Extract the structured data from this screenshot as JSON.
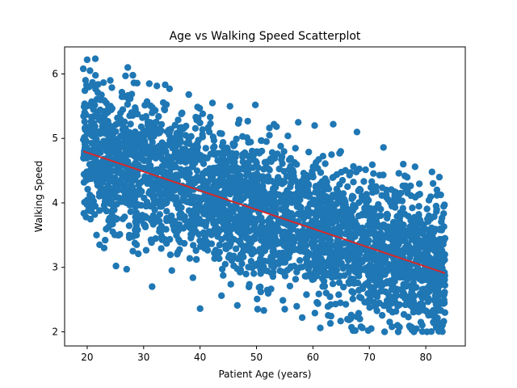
{
  "chart_data": {
    "type": "scatter",
    "title": "Age vs Walking Speed Scatterplot",
    "xlabel": "Patient Age (years)",
    "ylabel": "Walking Speed",
    "xlim": [
      16,
      87
    ],
    "ylim": [
      1.78,
      6.42
    ],
    "xticks": [
      20,
      30,
      40,
      50,
      60,
      70,
      80
    ],
    "yticks": [
      2,
      3,
      4,
      5,
      6
    ],
    "grid": false,
    "legend": "none",
    "point_color": "#1f77b4",
    "line_color": "#d62728",
    "series": [
      {
        "type": "scatter",
        "description_points": "dense cloud of several thousand points; representative outliers listed",
        "points": [
          [
            20.0,
            6.22
          ],
          [
            19.3,
            6.08
          ],
          [
            20.5,
            6.05
          ],
          [
            27.2,
            6.1
          ],
          [
            26.8,
            5.97
          ],
          [
            28.1,
            5.98
          ],
          [
            31.0,
            5.85
          ],
          [
            34.6,
            5.77
          ],
          [
            38.0,
            5.68
          ],
          [
            42.2,
            5.55
          ],
          [
            45.3,
            5.5
          ],
          [
            49.8,
            5.52
          ],
          [
            53.1,
            5.22
          ],
          [
            57.4,
            5.25
          ],
          [
            60.3,
            5.2
          ],
          [
            63.6,
            5.22
          ],
          [
            67.8,
            5.1
          ],
          [
            72.5,
            4.86
          ],
          [
            76.0,
            4.6
          ],
          [
            78.1,
            4.56
          ],
          [
            81.1,
            4.48
          ],
          [
            82.4,
            4.4
          ],
          [
            83.3,
            3.97
          ],
          [
            19.8,
            3.78
          ],
          [
            22.2,
            3.35
          ],
          [
            23.0,
            3.3
          ],
          [
            25.1,
            3.02
          ],
          [
            27.0,
            2.97
          ],
          [
            31.5,
            2.7
          ],
          [
            35.0,
            2.95
          ],
          [
            40.0,
            2.36
          ],
          [
            43.8,
            2.56
          ],
          [
            46.6,
            2.41
          ],
          [
            50.2,
            2.35
          ],
          [
            51.3,
            2.33
          ],
          [
            55.0,
            2.35
          ],
          [
            58.1,
            2.22
          ],
          [
            61.3,
            2.06
          ],
          [
            63.1,
            2.13
          ],
          [
            67.5,
            2.02
          ],
          [
            69.8,
            2.02
          ],
          [
            72.7,
            2.0
          ],
          [
            75.1,
            2.0
          ],
          [
            77.9,
            2.0
          ],
          [
            80.2,
            2.0
          ],
          [
            82.3,
            2.01
          ],
          [
            83.4,
            3.45
          ]
        ]
      },
      {
        "type": "line",
        "name": "",
        "x": [
          19.3,
          83.4
        ],
        "y": [
          4.8,
          2.91
        ]
      }
    ]
  }
}
